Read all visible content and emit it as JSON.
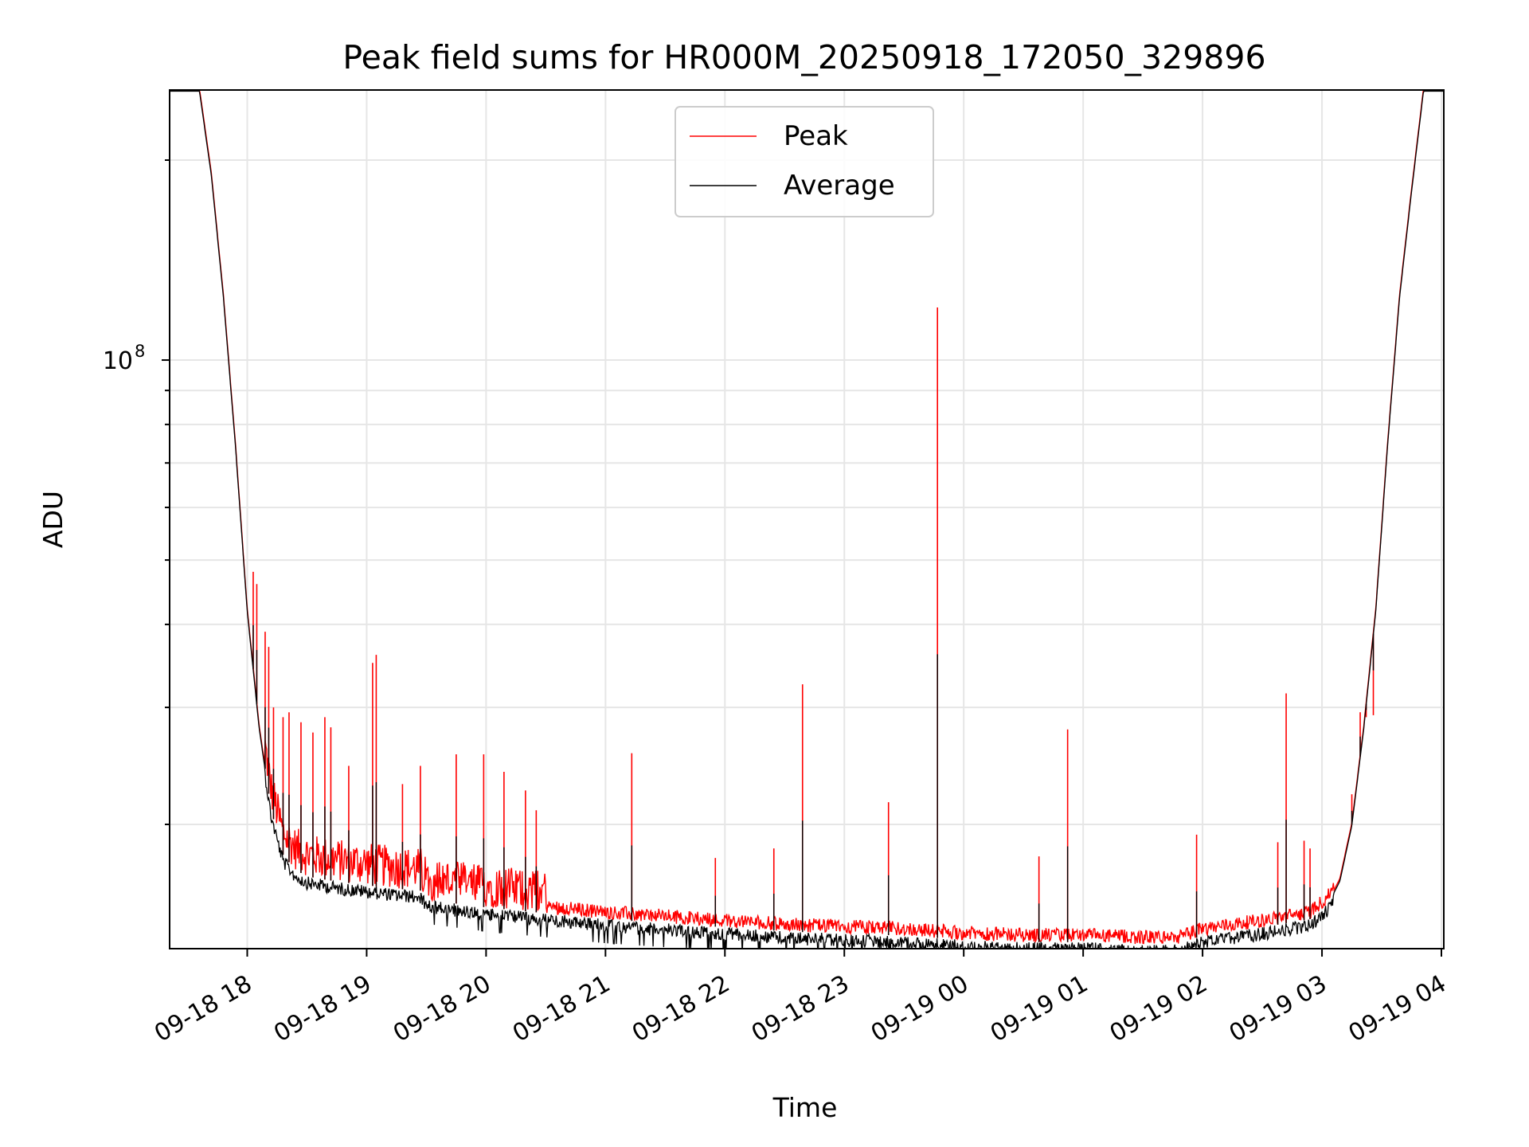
{
  "chart_data": {
    "type": "line",
    "title": "Peak field sums for HR000M_20250918_172050_329896",
    "xlabel": "Time",
    "ylabel": "ADU",
    "yscale": "log",
    "ylim": [
      13000000,
      255000000
    ],
    "xlim": [
      17.35,
      28.02
    ],
    "grid": true,
    "legend": {
      "placement": "top-center",
      "entries": [
        "Peak",
        "Average"
      ]
    },
    "x_ticks": [
      {
        "value": 18,
        "label": "09-18 18"
      },
      {
        "value": 19,
        "label": "09-18 19"
      },
      {
        "value": 20,
        "label": "09-18 20"
      },
      {
        "value": 21,
        "label": "09-18 21"
      },
      {
        "value": 22,
        "label": "09-18 22"
      },
      {
        "value": 23,
        "label": "09-18 23"
      },
      {
        "value": 24,
        "label": "09-19 00"
      },
      {
        "value": 25,
        "label": "09-19 01"
      },
      {
        "value": 26,
        "label": "09-19 02"
      },
      {
        "value": 27,
        "label": "09-19 03"
      },
      {
        "value": 28,
        "label": "09-19 04"
      }
    ],
    "y_ticks": [
      {
        "value": 100000000,
        "base": "10",
        "exp": "8"
      }
    ],
    "series": [
      {
        "name": "Average",
        "color": "#000000",
        "x": [
          17.35,
          17.6,
          17.7,
          17.8,
          17.9,
          18.0,
          18.1,
          18.2,
          18.3,
          18.4,
          18.5,
          18.75,
          19.0,
          19.25,
          19.45,
          19.5,
          19.75,
          20.0,
          20.5,
          21.0,
          21.5,
          22.0,
          22.5,
          23.0,
          23.5,
          24.0,
          24.5,
          25.0,
          25.5,
          25.8,
          26.0,
          26.5,
          26.9,
          27.05,
          27.15,
          27.25,
          27.35,
          27.45,
          27.55,
          27.65,
          27.75,
          27.85,
          28.02
        ],
        "y": [
          255000000,
          255000000,
          190000000,
          125000000,
          75000000,
          42000000,
          28000000,
          21000000,
          18000000,
          17100000,
          16700000,
          16400000,
          16200000,
          16000000,
          15900000,
          15400000,
          15200000,
          15000000,
          14700000,
          14400000,
          14200000,
          14000000,
          13800000,
          13700000,
          13600000,
          13400000,
          13300000,
          13300000,
          13200000,
          13200000,
          13600000,
          14000000,
          14400000,
          15200000,
          16500000,
          20000000,
          28000000,
          42000000,
          75000000,
          125000000,
          180000000,
          255000000,
          255000000
        ]
      },
      {
        "name": "Peak",
        "color": "#ff0000",
        "spikes": [
          {
            "x": 18.05,
            "y": 48000000
          },
          {
            "x": 18.08,
            "y": 46000000
          },
          {
            "x": 18.15,
            "y": 39000000
          },
          {
            "x": 18.18,
            "y": 37000000
          },
          {
            "x": 18.22,
            "y": 30000000
          },
          {
            "x": 18.3,
            "y": 29000000
          },
          {
            "x": 18.35,
            "y": 29500000
          },
          {
            "x": 18.45,
            "y": 28500000
          },
          {
            "x": 18.55,
            "y": 27500000
          },
          {
            "x": 18.65,
            "y": 29000000
          },
          {
            "x": 18.7,
            "y": 28000000
          },
          {
            "x": 18.85,
            "y": 24500000
          },
          {
            "x": 19.05,
            "y": 35000000
          },
          {
            "x": 19.08,
            "y": 36000000
          },
          {
            "x": 19.3,
            "y": 23000000
          },
          {
            "x": 19.45,
            "y": 24500000
          },
          {
            "x": 19.75,
            "y": 25500000
          },
          {
            "x": 19.98,
            "y": 25500000
          },
          {
            "x": 20.15,
            "y": 24000000
          },
          {
            "x": 20.33,
            "y": 22500000
          },
          {
            "x": 20.42,
            "y": 21000000
          },
          {
            "x": 21.22,
            "y": 25600000
          },
          {
            "x": 21.92,
            "y": 17800000
          },
          {
            "x": 22.41,
            "y": 18400000
          },
          {
            "x": 22.65,
            "y": 32500000
          },
          {
            "x": 23.37,
            "y": 21600000
          },
          {
            "x": 23.78,
            "y": 120000000
          },
          {
            "x": 24.63,
            "y": 17900000
          },
          {
            "x": 24.87,
            "y": 27800000
          },
          {
            "x": 25.95,
            "y": 19300000
          },
          {
            "x": 26.63,
            "y": 18800000
          },
          {
            "x": 26.7,
            "y": 31500000
          },
          {
            "x": 26.85,
            "y": 18900000
          },
          {
            "x": 26.9,
            "y": 18400000
          },
          {
            "x": 27.25,
            "y": 22200000
          },
          {
            "x": 27.32,
            "y": 29500000
          },
          {
            "x": 27.37,
            "y": 29000000
          },
          {
            "x": 27.43,
            "y": 29200000
          }
        ]
      }
    ]
  }
}
